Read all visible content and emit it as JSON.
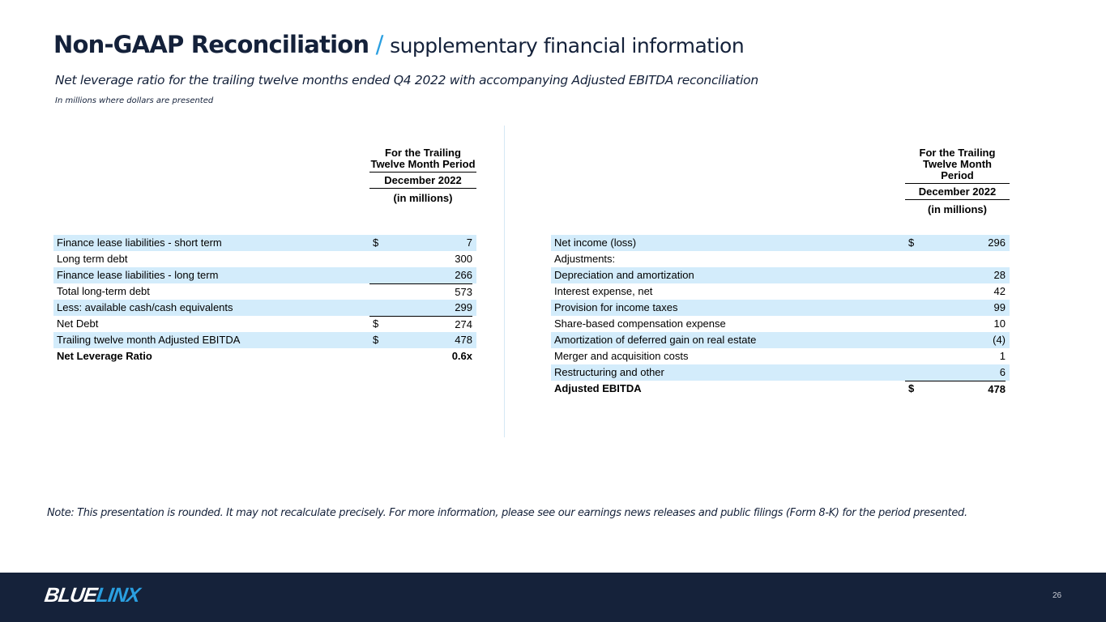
{
  "header": {
    "title_bold": "Non-GAAP Reconciliation",
    "separator": "/",
    "title_light": "supplementary financial information",
    "subtitle": "Net leverage ratio for the trailing twelve months ended Q4 2022 with accompanying Adjusted EBITDA reconciliation",
    "units": "In millions where dollars are presented"
  },
  "left_table": {
    "col_header": {
      "period": "For the Trailing Twelve Month Period",
      "date": "December 2022",
      "unit": "(in millions)"
    },
    "rows": [
      {
        "label": "Finance lease liabilities - short term",
        "dollar": "$",
        "value": "7"
      },
      {
        "label": "Long term debt",
        "dollar": "",
        "value": "300"
      },
      {
        "label": "Finance lease liabilities - long term",
        "dollar": "",
        "value": "266"
      },
      {
        "label": "Total long-term debt",
        "dollar": "",
        "value": "573"
      },
      {
        "label": "Less: available cash/cash equivalents",
        "dollar": "",
        "value": "299"
      },
      {
        "label": "Net Debt",
        "dollar": "$",
        "value": "274"
      },
      {
        "label": "Trailing twelve month Adjusted EBITDA",
        "dollar": "$",
        "value": "478"
      },
      {
        "label": "Net Leverage Ratio",
        "dollar": "",
        "value": "0.6x"
      }
    ]
  },
  "right_table": {
    "col_header": {
      "period": "For the Trailing Twelve Month Period",
      "date": "December 2022",
      "unit": "(in millions)"
    },
    "rows": [
      {
        "label": "Net income (loss)",
        "dollar": "$",
        "value": "296"
      },
      {
        "label": "Adjustments:",
        "dollar": "",
        "value": ""
      },
      {
        "label": "Depreciation and amortization",
        "dollar": "",
        "value": "28"
      },
      {
        "label": "Interest expense, net",
        "dollar": "",
        "value": "42"
      },
      {
        "label": "Provision for income taxes",
        "dollar": "",
        "value": "99"
      },
      {
        "label": "Share-based compensation expense",
        "dollar": "",
        "value": "10"
      },
      {
        "label": "Amortization of deferred gain on real estate",
        "dollar": "",
        "value": "(4)"
      },
      {
        "label": "Merger and acquisition costs",
        "dollar": "",
        "value": "1"
      },
      {
        "label": "Restructuring and other",
        "dollar": "",
        "value": "6"
      },
      {
        "label": "Adjusted EBITDA",
        "dollar": "$",
        "value": "478"
      }
    ]
  },
  "note": "Note: This presentation is rounded. It may not recalculate precisely. For more information, please see our earnings news releases and public filings (Form 8-K) for the period presented.",
  "footer": {
    "logo_part1": "BLUE",
    "logo_part2": "LINX",
    "page_number": "26"
  },
  "colors": {
    "accent": "#2a9fe0",
    "navy": "#15223a",
    "row_shade": "#d3ecfb"
  }
}
